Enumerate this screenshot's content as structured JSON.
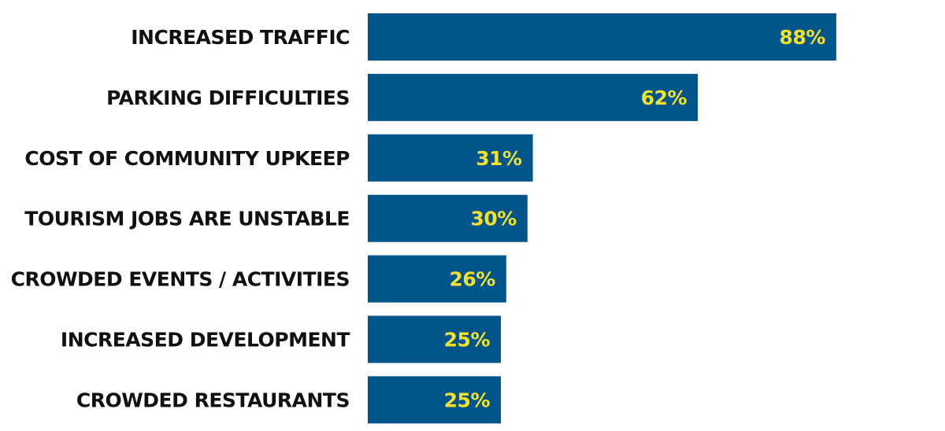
{
  "chart_data": {
    "type": "bar",
    "orientation": "horizontal",
    "categories": [
      "INCREASED TRAFFIC",
      "PARKING DIFFICULTIES",
      "COST OF COMMUNITY UPKEEP",
      "TOURISM JOBS ARE UNSTABLE",
      "CROWDED EVENTS / ACTIVITIES",
      "INCREASED DEVELOPMENT",
      "CROWDED RESTAURANTS"
    ],
    "values": [
      88,
      62,
      31,
      30,
      26,
      25,
      25
    ],
    "value_labels": [
      "88%",
      "62%",
      "31%",
      "30%",
      "26%",
      "25%",
      "25%"
    ],
    "unit": "%",
    "xlim": [
      0,
      100
    ],
    "grid": false,
    "legend": "none",
    "colors": {
      "bar": "#02558a",
      "value_label": "#f2e02a",
      "category_label": "#111111",
      "background": "#ffffff"
    }
  }
}
